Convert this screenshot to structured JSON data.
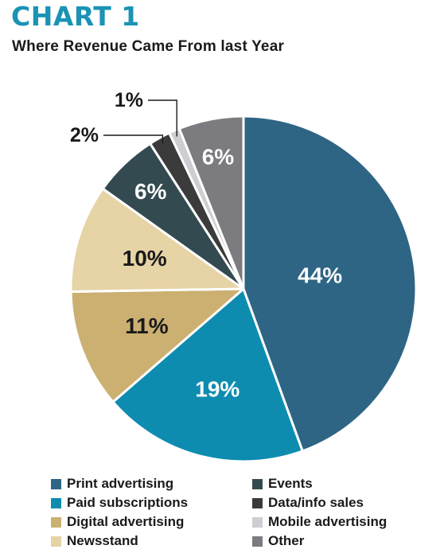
{
  "header": {
    "chart_number": "CHART 1",
    "title": "Where Revenue Came From last Year"
  },
  "chart_data": {
    "type": "pie",
    "title": "Where Revenue Came From last Year",
    "slices": [
      {
        "name": "Print advertising",
        "value": 44,
        "label": "44%",
        "color": "#2e6584",
        "label_color": "#ffffff"
      },
      {
        "name": "Paid subscriptions",
        "value": 19,
        "label": "19%",
        "color": "#0e8cb0",
        "label_color": "#ffffff"
      },
      {
        "name": "Digital advertising",
        "value": 11,
        "label": "11%",
        "color": "#cbb071",
        "label_color": "#1a1a1a"
      },
      {
        "name": "Newsstand",
        "value": 10,
        "label": "10%",
        "color": "#e6d3a6",
        "label_color": "#1a1a1a"
      },
      {
        "name": "Events",
        "value": 6,
        "label": "6%",
        "color": "#344a51",
        "label_color": "#ffffff"
      },
      {
        "name": "Data/info sales",
        "value": 2,
        "label": "2%",
        "color": "#3b3b3b",
        "label_color": "#1a1a1a"
      },
      {
        "name": "Mobile advertising",
        "value": 1,
        "label": "1%",
        "color": "#cdced2",
        "label_color": "#1a1a1a"
      },
      {
        "name": "Other",
        "value": 6,
        "label": "6%",
        "color": "#7b7b80",
        "label_color": "#ffffff"
      }
    ],
    "start_angle_deg": 0,
    "direction": "clockwise",
    "legend_placement": "bottom",
    "legend_columns": [
      [
        "Print advertising",
        "Paid subscriptions",
        "Digital advertising",
        "Newsstand"
      ],
      [
        "Events",
        "Data/info sales",
        "Mobile advertising",
        "Other"
      ]
    ]
  }
}
